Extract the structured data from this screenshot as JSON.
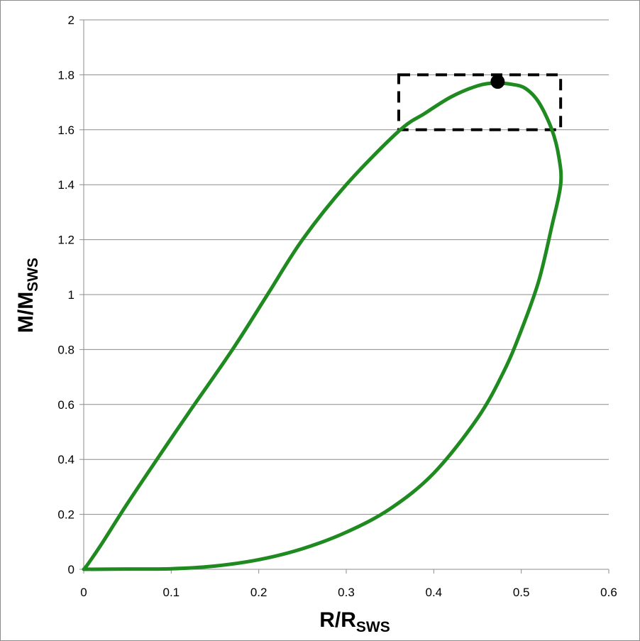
{
  "chart_data": {
    "type": "line",
    "xlabel": {
      "main": "R/R",
      "sub": "SWS"
    },
    "ylabel": {
      "main": "M/M",
      "sub": "SWS"
    },
    "xlim": [
      0,
      0.6
    ],
    "ylim": [
      0,
      2
    ],
    "x_ticks": [
      "0",
      "0.1",
      "0.2",
      "0.3",
      "0.4",
      "0.5",
      "0.6"
    ],
    "y_ticks": [
      "0",
      "0.2",
      "0.4",
      "0.6",
      "0.8",
      "1",
      "1.2",
      "1.4",
      "1.6",
      "1.8",
      "2"
    ],
    "grid": "horizontal",
    "legend": "none",
    "series": [
      {
        "color": "#1f8a1f",
        "points": [
          [
            0,
            0
          ],
          [
            0.05,
            0.001
          ],
          [
            0.1,
            0.002
          ],
          [
            0.15,
            0.012
          ],
          [
            0.2,
            0.035
          ],
          [
            0.25,
            0.075
          ],
          [
            0.3,
            0.135
          ],
          [
            0.35,
            0.22
          ],
          [
            0.4,
            0.35
          ],
          [
            0.45,
            0.55
          ],
          [
            0.48,
            0.72
          ],
          [
            0.5,
            0.87
          ],
          [
            0.52,
            1.05
          ],
          [
            0.535,
            1.25
          ],
          [
            0.545,
            1.4
          ],
          [
            0.543,
            1.5
          ],
          [
            0.535,
            1.6
          ],
          [
            0.52,
            1.7
          ],
          [
            0.505,
            1.75
          ],
          [
            0.49,
            1.765
          ],
          [
            0.47,
            1.77
          ],
          [
            0.45,
            1.76
          ],
          [
            0.42,
            1.72
          ],
          [
            0.39,
            1.66
          ],
          [
            0.36,
            1.595
          ],
          [
            0.3,
            1.4
          ],
          [
            0.25,
            1.2
          ],
          [
            0.21,
            1.0
          ],
          [
            0.17,
            0.8
          ],
          [
            0.12,
            0.57
          ],
          [
            0.09,
            0.43
          ],
          [
            0.05,
            0.24
          ],
          [
            0.02,
            0.09
          ],
          [
            0.005,
            0.02
          ],
          [
            0,
            0
          ]
        ]
      }
    ],
    "marker": {
      "x": 0.473,
      "y": 1.775,
      "color": "#000000"
    },
    "highlight_box": {
      "x0": 0.36,
      "x1": 0.545,
      "y0": 1.6,
      "y1": 1.8,
      "style": "dashed"
    }
  }
}
